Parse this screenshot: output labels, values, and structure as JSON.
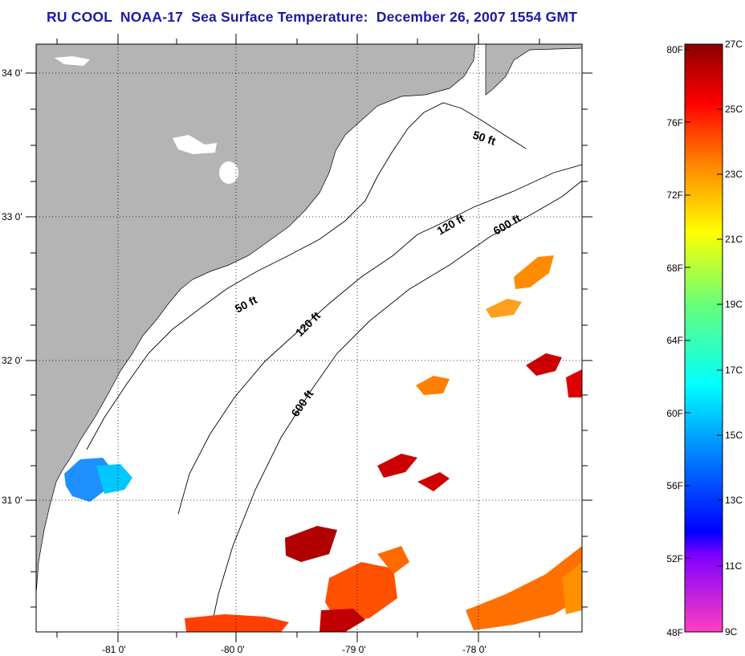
{
  "title": "RU COOL  NOAA-17  Sea Surface Temperature:  December 26, 2007 1554 GMT",
  "map": {
    "lat_labels": [
      "34 0'",
      "33 0'",
      "32 0'",
      "31 0'"
    ],
    "lon_labels": [
      "-81 0'",
      "-80 0'",
      "-79 0'",
      "-78 0'"
    ],
    "contours": [
      "50 ft",
      "50 ft",
      "120 ft",
      "120 ft",
      "600 ft",
      "600 ft"
    ],
    "colors": {
      "land": "#b4b4b4",
      "ocean": "#ffffff",
      "grid": "#000000"
    }
  },
  "colorbar": {
    "f_labels": [
      "80F",
      "76F",
      "72F",
      "68F",
      "64F",
      "60F",
      "56F",
      "52F",
      "48F"
    ],
    "c_labels": [
      "27C",
      "25C",
      "23C",
      "21C",
      "19C",
      "17C",
      "15C",
      "13C",
      "11C",
      "9C"
    ],
    "colors": [
      "#8b0000",
      "#ff0000",
      "#ff8000",
      "#ffff00",
      "#80ff60",
      "#00ffff",
      "#0080ff",
      "#0000ff",
      "#8000ff",
      "#ff40c0"
    ]
  }
}
